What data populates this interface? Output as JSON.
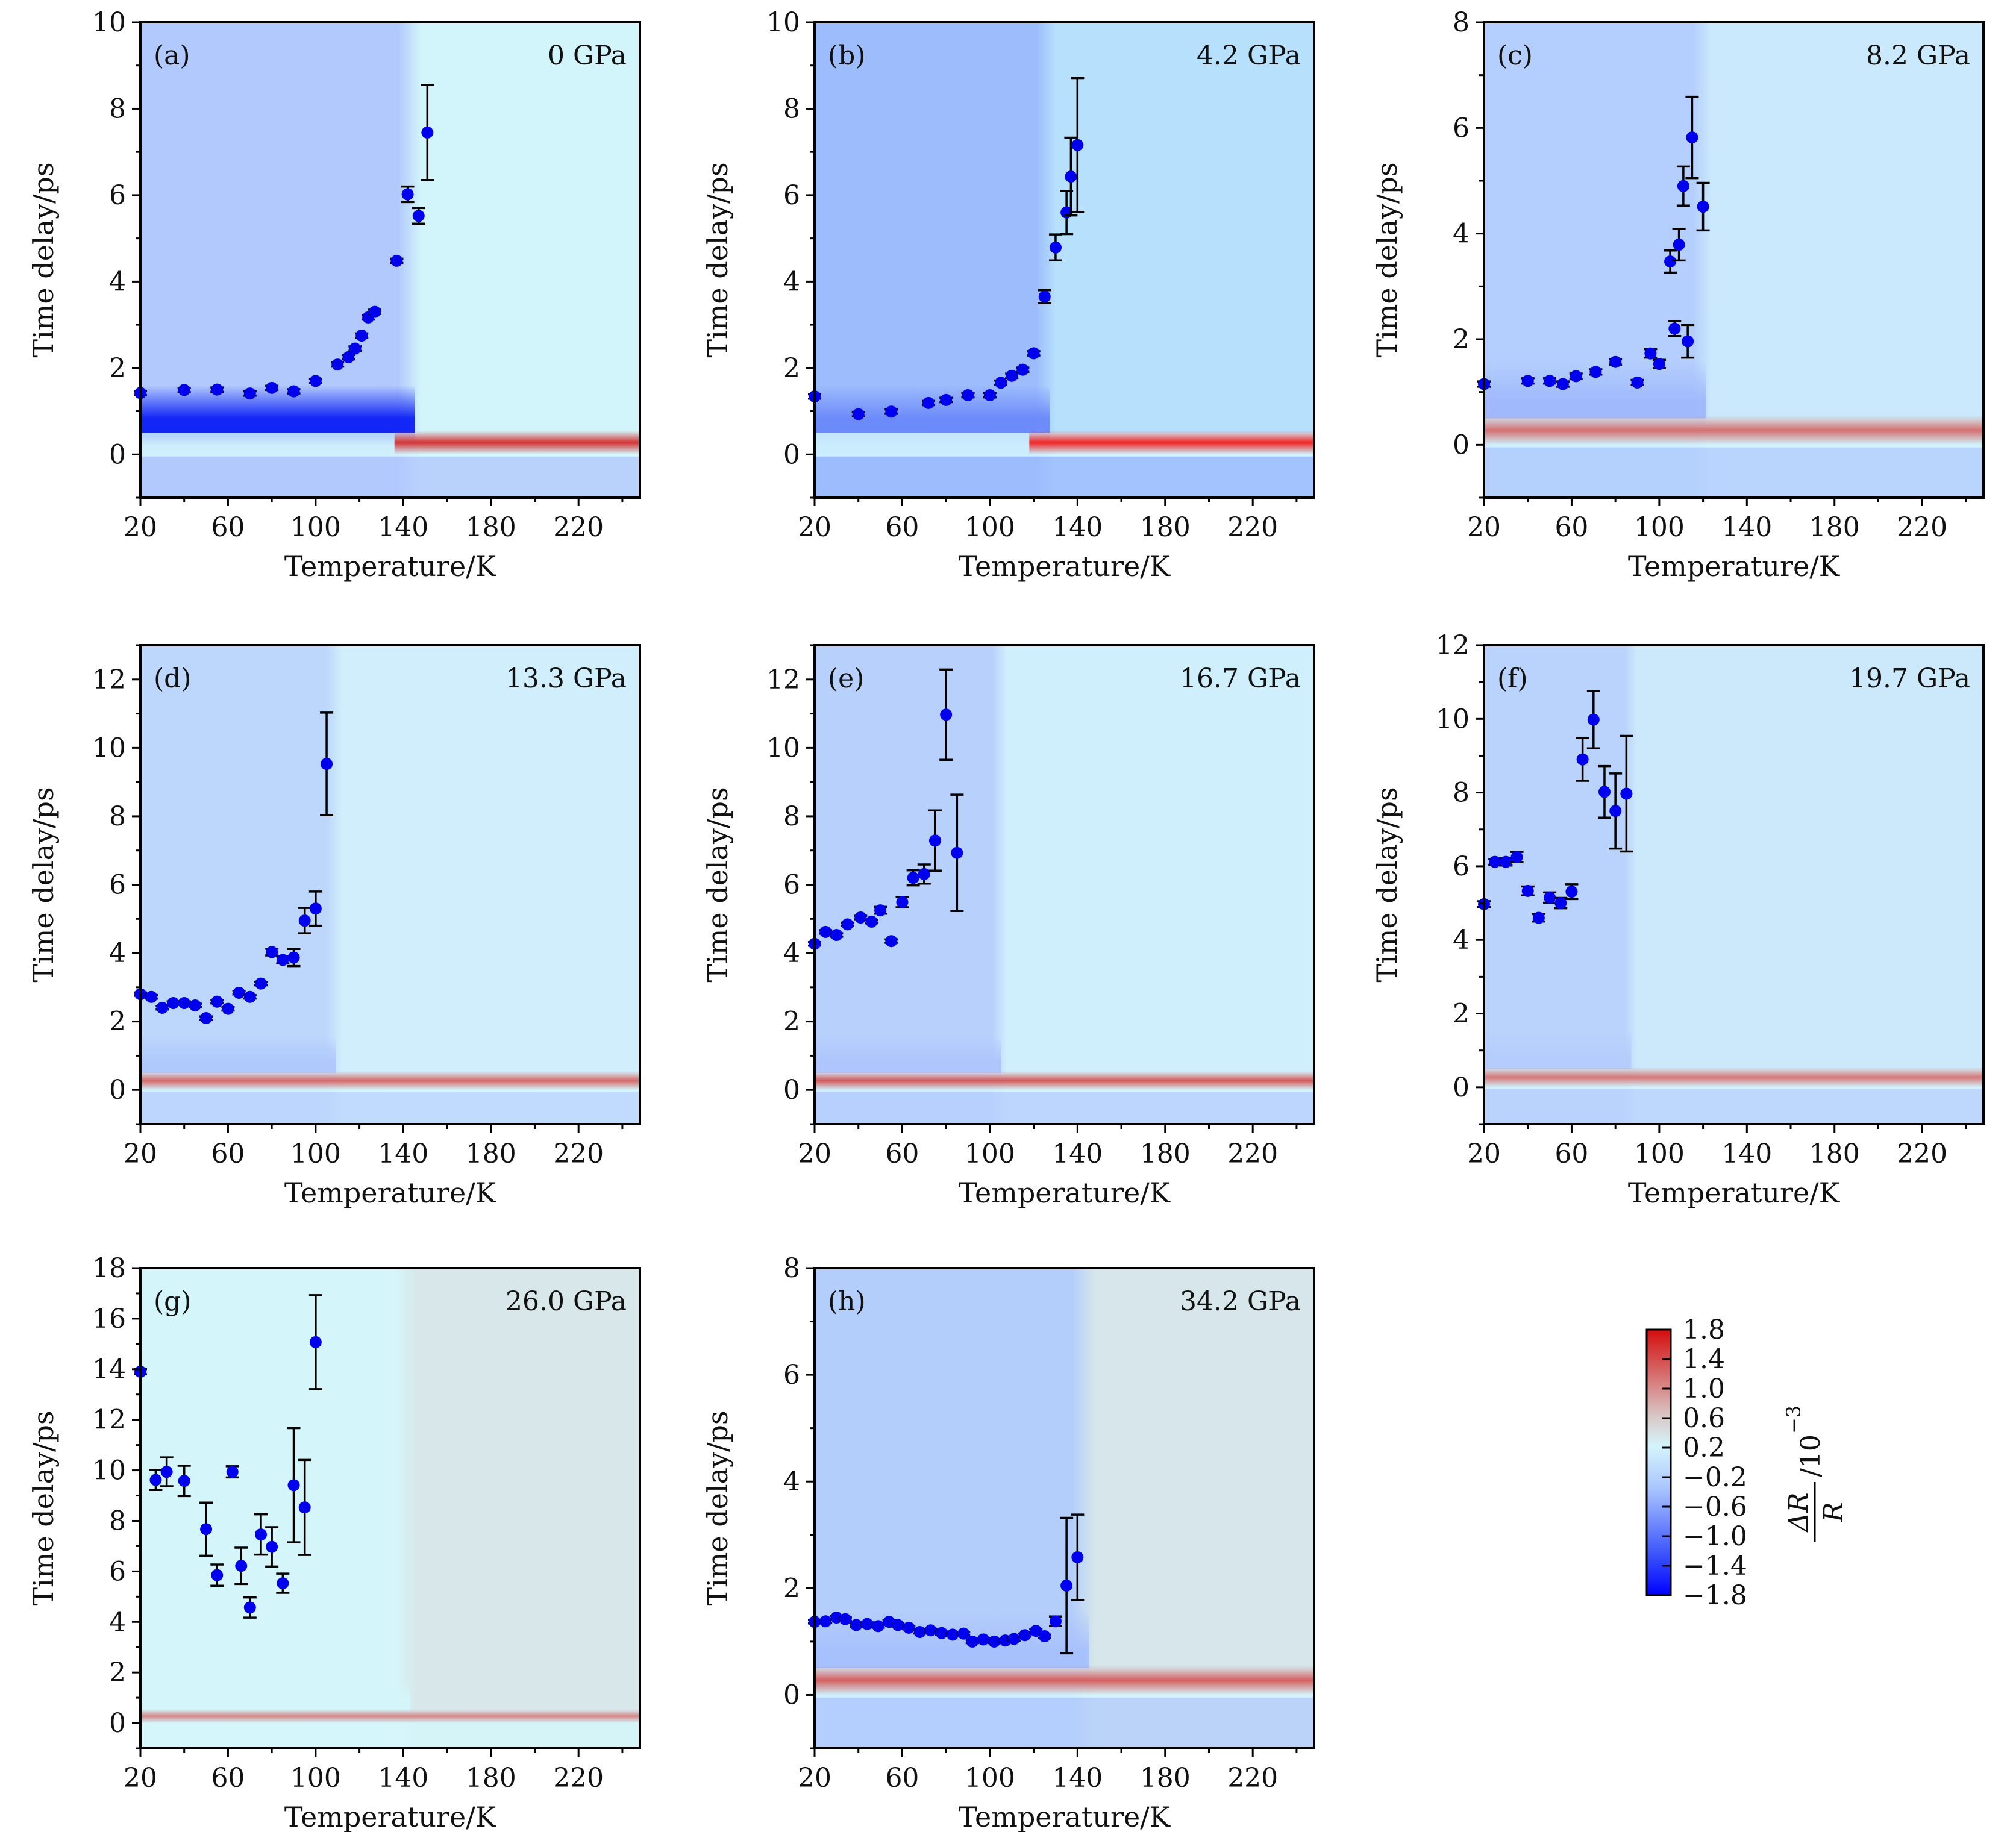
{
  "figure": {
    "colorbar": {
      "ticks": [
        "1.8",
        "1.4",
        "1.0",
        "0.6",
        "0.2",
        "−0.2",
        "−0.6",
        "−1.0",
        "−1.4",
        "−1.8"
      ],
      "tick_values": [
        1.8,
        1.4,
        1.0,
        0.6,
        0.2,
        -0.2,
        -0.6,
        -1.0,
        -1.4,
        -1.8
      ],
      "range": [
        -1.8,
        1.8
      ],
      "label_numerator": "ΔR",
      "label_denominator": "R",
      "label_unit": "/10",
      "label_exponent": "−3",
      "colors": {
        "min": "#0000ff",
        "mid_low": "#a9c4ff",
        "zero": "#d4f4fb",
        "mid_high": "#d9c9c9",
        "max": "#d40d0d"
      }
    }
  },
  "chart_data": [
    {
      "type": "heatmap",
      "panel": "(a)",
      "title": "0 GPa",
      "xlabel": "Temperature/K",
      "ylabel": "Time delay/ps",
      "xlim": [
        20,
        248
      ],
      "ylim": [
        -1,
        10
      ],
      "xticks": [
        20,
        60,
        100,
        140,
        180,
        220
      ],
      "yticks": [
        0,
        2,
        4,
        6,
        8,
        10
      ],
      "background": {
        "low_T_color": "#b2c9fd",
        "band_color": "#0a1ef5",
        "high_T_color": "#d2f4fb",
        "red_band": "#d43333",
        "transition_T": 148
      },
      "points": [
        {
          "x": 20,
          "y": 1.42,
          "err": 0.05
        },
        {
          "x": 40,
          "y": 1.49,
          "err": 0.05
        },
        {
          "x": 55,
          "y": 1.5,
          "err": 0.05
        },
        {
          "x": 70,
          "y": 1.41,
          "err": 0.05
        },
        {
          "x": 80,
          "y": 1.54,
          "err": 0.05
        },
        {
          "x": 90,
          "y": 1.46,
          "err": 0.05
        },
        {
          "x": 100,
          "y": 1.7,
          "err": 0.05
        },
        {
          "x": 110,
          "y": 2.08,
          "err": 0.05
        },
        {
          "x": 115,
          "y": 2.25,
          "err": 0.05
        },
        {
          "x": 118,
          "y": 2.45,
          "err": 0.05
        },
        {
          "x": 121,
          "y": 2.75,
          "err": 0.05
        },
        {
          "x": 124,
          "y": 3.17,
          "err": 0.05
        },
        {
          "x": 127,
          "y": 3.3,
          "err": 0.05
        },
        {
          "x": 137,
          "y": 4.48,
          "err": 0.05
        },
        {
          "x": 142,
          "y": 6.02,
          "err": 0.18
        },
        {
          "x": 147,
          "y": 5.52,
          "err": 0.18
        },
        {
          "x": 151,
          "y": 7.45,
          "err": 1.1
        }
      ]
    },
    {
      "type": "heatmap",
      "panel": "(b)",
      "title": "4.2 GPa",
      "xlabel": "Temperature/K",
      "ylabel": "Time delay/ps",
      "xlim": [
        20,
        248
      ],
      "ylim": [
        -1,
        10
      ],
      "xticks": [
        20,
        60,
        100,
        140,
        180,
        220
      ],
      "yticks": [
        0,
        2,
        4,
        6,
        8,
        10
      ],
      "background": {
        "low_T_color": "#9dbcfc",
        "band_color": "#6a88fa",
        "high_T_color": "#b6e0fc",
        "red_band": "#f02424",
        "transition_T": 130
      },
      "points": [
        {
          "x": 20,
          "y": 1.34,
          "err": 0.05
        },
        {
          "x": 40,
          "y": 0.93,
          "err": 0.05
        },
        {
          "x": 55,
          "y": 0.99,
          "err": 0.05
        },
        {
          "x": 72,
          "y": 1.19,
          "err": 0.05
        },
        {
          "x": 80,
          "y": 1.26,
          "err": 0.05
        },
        {
          "x": 90,
          "y": 1.37,
          "err": 0.05
        },
        {
          "x": 100,
          "y": 1.37,
          "err": 0.05
        },
        {
          "x": 105,
          "y": 1.66,
          "err": 0.05
        },
        {
          "x": 110,
          "y": 1.82,
          "err": 0.05
        },
        {
          "x": 115,
          "y": 1.96,
          "err": 0.05
        },
        {
          "x": 120,
          "y": 2.34,
          "err": 0.05
        },
        {
          "x": 125,
          "y": 3.65,
          "err": 0.15
        },
        {
          "x": 130,
          "y": 4.79,
          "err": 0.3
        },
        {
          "x": 135,
          "y": 5.6,
          "err": 0.5
        },
        {
          "x": 137,
          "y": 6.43,
          "err": 0.9
        },
        {
          "x": 140,
          "y": 7.16,
          "err": 1.55
        }
      ]
    },
    {
      "type": "heatmap",
      "panel": "(c)",
      "title": "8.2 GPa",
      "xlabel": "Temperature/K",
      "ylabel": "Time delay/ps",
      "xlim": [
        20,
        248
      ],
      "ylim": [
        -1,
        8
      ],
      "xticks": [
        20,
        60,
        100,
        140,
        180,
        220
      ],
      "yticks": [
        0,
        2,
        4,
        6,
        8
      ],
      "background": {
        "low_T_color": "#b4cffd",
        "band_color": "#9fb8fc",
        "high_T_color": "#cbe9fc",
        "red_band": "#d47070",
        "transition_T": 124
      },
      "points": [
        {
          "x": 20,
          "y": 1.15,
          "err": 0.05
        },
        {
          "x": 40,
          "y": 1.21,
          "err": 0.05
        },
        {
          "x": 50,
          "y": 1.21,
          "err": 0.05
        },
        {
          "x": 56,
          "y": 1.15,
          "err": 0.05
        },
        {
          "x": 62,
          "y": 1.3,
          "err": 0.05
        },
        {
          "x": 71,
          "y": 1.38,
          "err": 0.05
        },
        {
          "x": 80,
          "y": 1.57,
          "err": 0.05
        },
        {
          "x": 90,
          "y": 1.18,
          "err": 0.05
        },
        {
          "x": 96,
          "y": 1.73,
          "err": 0.08
        },
        {
          "x": 100,
          "y": 1.53,
          "err": 0.08
        },
        {
          "x": 105,
          "y": 3.47,
          "err": 0.21
        },
        {
          "x": 107,
          "y": 2.2,
          "err": 0.14
        },
        {
          "x": 109,
          "y": 3.79,
          "err": 0.3
        },
        {
          "x": 111,
          "y": 4.9,
          "err": 0.37
        },
        {
          "x": 113,
          "y": 1.96,
          "err": 0.31
        },
        {
          "x": 115,
          "y": 5.82,
          "err": 0.77
        },
        {
          "x": 120,
          "y": 4.51,
          "err": 0.45
        }
      ]
    },
    {
      "type": "heatmap",
      "panel": "(d)",
      "title": "13.3 GPa",
      "xlabel": "Temperature/K",
      "ylabel": "Time delay/ps",
      "xlim": [
        20,
        248
      ],
      "ylim": [
        -1,
        13
      ],
      "xticks": [
        20,
        60,
        100,
        140,
        180,
        220
      ],
      "yticks": [
        0,
        2,
        4,
        6,
        8,
        10,
        12
      ],
      "background": {
        "low_T_color": "#bcd6fc",
        "band_color": "#aec8fc",
        "high_T_color": "#d0eefc",
        "red_band": "#d46868",
        "transition_T": 112
      },
      "points": [
        {
          "x": 20,
          "y": 2.8,
          "err": 0.05
        },
        {
          "x": 25,
          "y": 2.72,
          "err": 0.05
        },
        {
          "x": 30,
          "y": 2.4,
          "err": 0.05
        },
        {
          "x": 35,
          "y": 2.54,
          "err": 0.05
        },
        {
          "x": 40,
          "y": 2.54,
          "err": 0.05
        },
        {
          "x": 45,
          "y": 2.47,
          "err": 0.05
        },
        {
          "x": 50,
          "y": 2.1,
          "err": 0.05
        },
        {
          "x": 55,
          "y": 2.58,
          "err": 0.05
        },
        {
          "x": 60,
          "y": 2.37,
          "err": 0.05
        },
        {
          "x": 65,
          "y": 2.84,
          "err": 0.05
        },
        {
          "x": 70,
          "y": 2.72,
          "err": 0.05
        },
        {
          "x": 75,
          "y": 3.11,
          "err": 0.05
        },
        {
          "x": 80,
          "y": 4.03,
          "err": 0.1
        },
        {
          "x": 85,
          "y": 3.8,
          "err": 0.1
        },
        {
          "x": 90,
          "y": 3.87,
          "err": 0.25
        },
        {
          "x": 95,
          "y": 4.95,
          "err": 0.37
        },
        {
          "x": 100,
          "y": 5.3,
          "err": 0.5
        },
        {
          "x": 105,
          "y": 9.53,
          "err": 1.5
        }
      ]
    },
    {
      "type": "heatmap",
      "panel": "(e)",
      "title": "16.7 GPa",
      "xlabel": "Temperature/K",
      "ylabel": "Time delay/ps",
      "xlim": [
        20,
        248
      ],
      "ylim": [
        -1,
        13
      ],
      "xticks": [
        20,
        60,
        100,
        140,
        180,
        220
      ],
      "yticks": [
        0,
        2,
        4,
        6,
        8,
        10,
        12
      ],
      "background": {
        "low_T_color": "#b8d0fc",
        "band_color": "#aec5fc",
        "high_T_color": "#d0effc",
        "red_band": "#d45858",
        "transition_T": 108
      },
      "points": [
        {
          "x": 20,
          "y": 4.27,
          "err": 0.05
        },
        {
          "x": 25,
          "y": 4.62,
          "err": 0.05
        },
        {
          "x": 30,
          "y": 4.53,
          "err": 0.05
        },
        {
          "x": 35,
          "y": 4.84,
          "err": 0.05
        },
        {
          "x": 41,
          "y": 5.04,
          "err": 0.05
        },
        {
          "x": 46,
          "y": 4.92,
          "err": 0.05
        },
        {
          "x": 50,
          "y": 5.25,
          "err": 0.1
        },
        {
          "x": 55,
          "y": 4.35,
          "err": 0.05
        },
        {
          "x": 60,
          "y": 5.49,
          "err": 0.15
        },
        {
          "x": 65,
          "y": 6.2,
          "err": 0.22
        },
        {
          "x": 70,
          "y": 6.31,
          "err": 0.28
        },
        {
          "x": 75,
          "y": 7.29,
          "err": 0.88
        },
        {
          "x": 80,
          "y": 10.97,
          "err": 1.32
        },
        {
          "x": 85,
          "y": 6.93,
          "err": 1.7
        }
      ]
    },
    {
      "type": "heatmap",
      "panel": "(f)",
      "title": "19.7 GPa",
      "xlabel": "Temperature/K",
      "ylabel": "Time delay/ps",
      "xlim": [
        20,
        248
      ],
      "ylim": [
        -1,
        12
      ],
      "xticks": [
        20,
        60,
        100,
        140,
        180,
        220
      ],
      "yticks": [
        0,
        2,
        4,
        6,
        8,
        10,
        12
      ],
      "background": {
        "low_T_color": "#bad3fc",
        "band_color": "#b4cdfc",
        "high_T_color": "#cce9fc",
        "red_band": "#d47878",
        "transition_T": 90
      },
      "points": [
        {
          "x": 20,
          "y": 4.97,
          "err": 0.08
        },
        {
          "x": 25,
          "y": 6.12,
          "err": 0.08
        },
        {
          "x": 30,
          "y": 6.12,
          "err": 0.1
        },
        {
          "x": 35,
          "y": 6.25,
          "err": 0.14
        },
        {
          "x": 40,
          "y": 5.33,
          "err": 0.12
        },
        {
          "x": 45,
          "y": 4.6,
          "err": 0.1
        },
        {
          "x": 50,
          "y": 5.15,
          "err": 0.14
        },
        {
          "x": 55,
          "y": 5.0,
          "err": 0.14
        },
        {
          "x": 60,
          "y": 5.31,
          "err": 0.2
        },
        {
          "x": 65,
          "y": 8.9,
          "err": 0.58
        },
        {
          "x": 70,
          "y": 9.98,
          "err": 0.78
        },
        {
          "x": 75,
          "y": 8.02,
          "err": 0.7
        },
        {
          "x": 80,
          "y": 7.5,
          "err": 1.02
        },
        {
          "x": 85,
          "y": 7.97,
          "err": 1.57
        }
      ]
    },
    {
      "type": "heatmap",
      "panel": "(g)",
      "title": "26.0 GPa",
      "xlabel": "Temperature/K",
      "ylabel": "Time delay/ps",
      "xlim": [
        20,
        248
      ],
      "ylim": [
        -1,
        18
      ],
      "xticks": [
        20,
        60,
        100,
        140,
        180,
        220
      ],
      "yticks": [
        0,
        2,
        4,
        6,
        8,
        10,
        12,
        14,
        16,
        18
      ],
      "background": {
        "low_T_color": "#d4f6fb",
        "band_color": "#d4f6fb",
        "high_T_color": "#d8e8ea",
        "red_band": "#d48888",
        "transition_T": 146
      },
      "points": [
        {
          "x": 20,
          "y": 13.9,
          "err": 0.1
        },
        {
          "x": 27,
          "y": 9.62,
          "err": 0.4
        },
        {
          "x": 32,
          "y": 9.94,
          "err": 0.57
        },
        {
          "x": 40,
          "y": 9.58,
          "err": 0.6
        },
        {
          "x": 50,
          "y": 7.67,
          "err": 1.05
        },
        {
          "x": 55,
          "y": 5.85,
          "err": 0.42
        },
        {
          "x": 62,
          "y": 9.94,
          "err": 0.22
        },
        {
          "x": 66,
          "y": 6.22,
          "err": 0.72
        },
        {
          "x": 70,
          "y": 4.57,
          "err": 0.4
        },
        {
          "x": 75,
          "y": 7.46,
          "err": 0.8
        },
        {
          "x": 80,
          "y": 6.97,
          "err": 0.78
        },
        {
          "x": 85,
          "y": 5.53,
          "err": 0.38
        },
        {
          "x": 90,
          "y": 9.41,
          "err": 2.26
        },
        {
          "x": 95,
          "y": 8.53,
          "err": 1.88
        },
        {
          "x": 100,
          "y": 15.07,
          "err": 1.86
        }
      ]
    },
    {
      "type": "heatmap",
      "panel": "(h)",
      "title": "34.2 GPa",
      "xlabel": "Temperature/K",
      "ylabel": "Time delay/ps",
      "xlim": [
        20,
        248
      ],
      "ylim": [
        -1,
        8
      ],
      "xticks": [
        20,
        60,
        100,
        140,
        180,
        220
      ],
      "yticks": [
        0,
        2,
        4,
        6,
        8
      ],
      "background": {
        "low_T_color": "#b4cefc",
        "band_color": "#a6c0fc",
        "high_T_color": "#d6e6ea",
        "red_band": "#d46060",
        "transition_T": 148
      },
      "points": [
        {
          "x": 20,
          "y": 1.37,
          "err": 0.03
        },
        {
          "x": 25,
          "y": 1.38,
          "err": 0.03
        },
        {
          "x": 30,
          "y": 1.45,
          "err": 0.03
        },
        {
          "x": 34,
          "y": 1.42,
          "err": 0.03
        },
        {
          "x": 39,
          "y": 1.31,
          "err": 0.03
        },
        {
          "x": 44,
          "y": 1.33,
          "err": 0.03
        },
        {
          "x": 49,
          "y": 1.29,
          "err": 0.03
        },
        {
          "x": 54,
          "y": 1.37,
          "err": 0.03
        },
        {
          "x": 58,
          "y": 1.31,
          "err": 0.03
        },
        {
          "x": 63,
          "y": 1.26,
          "err": 0.03
        },
        {
          "x": 68,
          "y": 1.18,
          "err": 0.03
        },
        {
          "x": 73,
          "y": 1.21,
          "err": 0.03
        },
        {
          "x": 78,
          "y": 1.16,
          "err": 0.03
        },
        {
          "x": 83,
          "y": 1.13,
          "err": 0.03
        },
        {
          "x": 88,
          "y": 1.15,
          "err": 0.03
        },
        {
          "x": 92,
          "y": 1.0,
          "err": 0.03
        },
        {
          "x": 97,
          "y": 1.04,
          "err": 0.03
        },
        {
          "x": 102,
          "y": 1.0,
          "err": 0.03
        },
        {
          "x": 107,
          "y": 1.02,
          "err": 0.03
        },
        {
          "x": 111,
          "y": 1.05,
          "err": 0.03
        },
        {
          "x": 116,
          "y": 1.12,
          "err": 0.03
        },
        {
          "x": 121,
          "y": 1.2,
          "err": 0.03
        },
        {
          "x": 125,
          "y": 1.1,
          "err": 0.03
        },
        {
          "x": 130,
          "y": 1.38,
          "err": 0.09
        },
        {
          "x": 135,
          "y": 2.05,
          "err": 1.27
        },
        {
          "x": 140,
          "y": 2.58,
          "err": 0.8
        }
      ]
    }
  ]
}
